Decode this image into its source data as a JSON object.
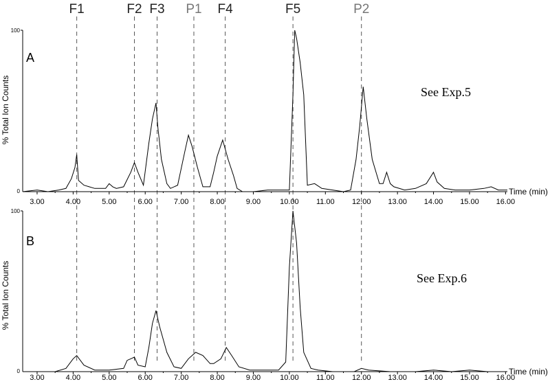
{
  "chart_data": [
    {
      "type": "line",
      "panel_label": "A",
      "note": "See Exp.5",
      "ylabel": "% Total Ion Counts",
      "xlabel": "Time (min)",
      "ymax_label": "100",
      "ymin_label": "0",
      "xlim": [
        2.6,
        16.05
      ],
      "ylim": [
        0,
        100
      ],
      "x_ticks": [
        "3.00",
        "4.00",
        "5.00",
        "6.00",
        "7.00",
        "8.00",
        "9.00",
        "10.00",
        "11.00",
        "12.00",
        "13.00",
        "14.00",
        "15.00",
        "16.00"
      ],
      "series": [
        {
          "x": [
            2.6,
            3.0,
            3.3,
            3.6,
            3.8,
            3.95,
            4.05,
            4.1,
            4.15,
            4.3,
            4.6,
            4.9,
            5.0,
            5.1,
            5.2,
            5.4,
            5.6,
            5.7,
            5.8,
            5.95,
            6.1,
            6.2,
            6.3,
            6.35,
            6.45,
            6.6,
            6.7,
            6.9,
            7.1,
            7.2,
            7.3,
            7.45,
            7.6,
            7.8,
            7.9,
            8.0,
            8.15,
            8.3,
            8.45,
            8.55,
            8.7,
            9.0,
            9.4,
            9.8,
            10.0,
            10.1,
            10.15,
            10.2,
            10.3,
            10.4,
            10.5,
            10.7,
            10.9,
            11.2,
            11.5,
            11.7,
            11.85,
            11.95,
            12.05,
            12.15,
            12.3,
            12.5,
            12.6,
            12.7,
            12.8,
            12.9,
            13.2,
            13.5,
            13.8,
            14.0,
            14.1,
            14.3,
            14.6,
            15.0,
            15.4,
            15.6,
            15.8,
            16.05
          ],
          "y": [
            0,
            1,
            0,
            1,
            2,
            8,
            15,
            23,
            7,
            4,
            2,
            2,
            5,
            3,
            2,
            3,
            12,
            18,
            12,
            4,
            30,
            45,
            55,
            40,
            20,
            5,
            2,
            4,
            25,
            35,
            28,
            15,
            3,
            3,
            12,
            22,
            32,
            20,
            10,
            2,
            0,
            0,
            1,
            1,
            1,
            60,
            100,
            95,
            80,
            60,
            4,
            5,
            2,
            1,
            0,
            1,
            20,
            40,
            65,
            45,
            20,
            5,
            5,
            12,
            5,
            3,
            1,
            2,
            5,
            12,
            6,
            2,
            1,
            1,
            2,
            3,
            1,
            1
          ]
        }
      ]
    },
    {
      "type": "line",
      "panel_label": "B",
      "note": "See Exp.6",
      "ylabel": "% Total Ion Counts",
      "xlabel": "Time (min)",
      "ymax_label": "100",
      "ymin_label": "0",
      "xlim": [
        2.6,
        16.05
      ],
      "ylim": [
        0,
        100
      ],
      "x_ticks": [
        "3.00",
        "4.00",
        "5.00",
        "6.00",
        "7.00",
        "8.00",
        "9.00",
        "10.00",
        "11.00",
        "12.00",
        "13.00",
        "14.00",
        "15.00",
        "16.00"
      ],
      "series": [
        {
          "x": [
            2.6,
            3.0,
            3.5,
            3.8,
            4.0,
            4.1,
            4.3,
            4.6,
            5.0,
            5.4,
            5.5,
            5.6,
            5.7,
            5.8,
            6.0,
            6.1,
            6.2,
            6.3,
            6.4,
            6.6,
            6.8,
            7.0,
            7.2,
            7.4,
            7.6,
            7.8,
            7.9,
            8.1,
            8.25,
            8.4,
            8.6,
            8.9,
            9.3,
            9.7,
            9.9,
            10.0,
            10.1,
            10.2,
            10.3,
            10.4,
            10.6,
            10.8,
            11.2,
            11.8,
            12.0,
            12.2,
            12.8,
            13.5,
            14.0,
            14.5,
            15.0,
            15.5,
            16.05
          ],
          "y": [
            0,
            0,
            0,
            2,
            8,
            10,
            4,
            1,
            1,
            2,
            7,
            8,
            9,
            4,
            3,
            15,
            30,
            38,
            28,
            12,
            3,
            2,
            8,
            12,
            10,
            5,
            5,
            8,
            15,
            10,
            3,
            1,
            1,
            1,
            6,
            65,
            100,
            80,
            40,
            12,
            2,
            1,
            0,
            0,
            2,
            1,
            0,
            0,
            1,
            0,
            1,
            0,
            0
          ]
        }
      ]
    }
  ],
  "markers": [
    {
      "label": "F1",
      "x": 4.1,
      "color": "#222222"
    },
    {
      "label": "F2",
      "x": 5.7,
      "color": "#222222"
    },
    {
      "label": "F3",
      "x": 6.33,
      "color": "#222222"
    },
    {
      "label": "P1",
      "x": 7.35,
      "color": "#777777"
    },
    {
      "label": "F4",
      "x": 8.22,
      "color": "#222222"
    },
    {
      "label": "F5",
      "x": 10.1,
      "color": "#222222"
    },
    {
      "label": "P2",
      "x": 12.0,
      "color": "#777777"
    }
  ]
}
